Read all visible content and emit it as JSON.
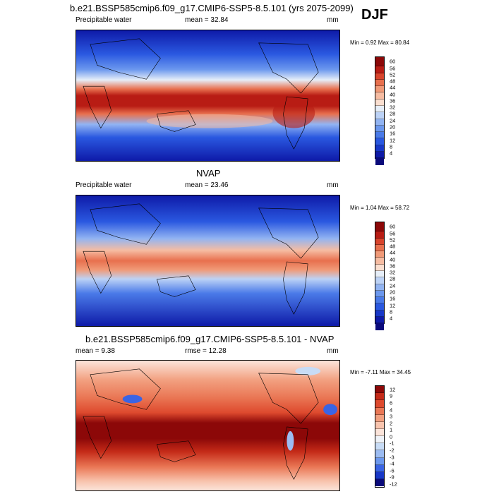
{
  "season": "DJF",
  "panels": [
    {
      "id": "model",
      "title": "b.e21.BSSP585cmip6.f09_g17.CMIP6-SSP5-8.5.101 (yrs 2075-2099)",
      "left_label": "Precipitable water",
      "stat_label": "mean =",
      "stat_value": "32.84",
      "units": "mm",
      "minmax": "Min =   0.92 Max =  80.84",
      "colorbar": [
        "60",
        "56",
        "52",
        "48",
        "44",
        "40",
        "36",
        "32",
        "28",
        "24",
        "20",
        "16",
        "12",
        "8",
        "4"
      ]
    },
    {
      "id": "obs",
      "title": "NVAP",
      "left_label": "Precipitable water",
      "stat_label": "mean =",
      "stat_value": "23.46",
      "units": "mm",
      "minmax": "Min =   1.04 Max =  58.72",
      "colorbar": [
        "60",
        "56",
        "52",
        "48",
        "44",
        "40",
        "36",
        "32",
        "28",
        "24",
        "20",
        "16",
        "12",
        "8",
        "4"
      ]
    },
    {
      "id": "diff",
      "title": "b.e21.BSSP585cmip6.f09_g17.CMIP6-SSP5-8.5.101 - NVAP",
      "left_label": "mean =    9.38",
      "stat_label": "rmse =",
      "stat_value": "12.28",
      "units": "mm",
      "minmax": "Min =  -7.11 Max =  34.45",
      "colorbar": [
        "12",
        "9",
        "6",
        "4",
        "3",
        "2",
        "1",
        "0",
        "-1",
        "-2",
        "-3",
        "-4",
        "-6",
        "-9",
        "-12"
      ]
    }
  ],
  "colors": {
    "seq": [
      "#0a0a7a",
      "#0e1aa8",
      "#1838c8",
      "#2a58e0",
      "#4a7ae8",
      "#6c98ee",
      "#92b4f2",
      "#bcd2f6",
      "#e6eef8",
      "#fadfd0",
      "#f6bca2",
      "#f09a78",
      "#e8704e",
      "#d8442c",
      "#b81c14",
      "#8c0808"
    ],
    "diff": [
      "#0a0a7a",
      "#1838c8",
      "#3a64e4",
      "#6c98ee",
      "#9cbcf2",
      "#c8dcf6",
      "#eef2f8",
      "#fbe4da",
      "#f8c4ae",
      "#f2a080",
      "#ea7856",
      "#de4a2e",
      "#c42a18",
      "#8c0808"
    ]
  }
}
